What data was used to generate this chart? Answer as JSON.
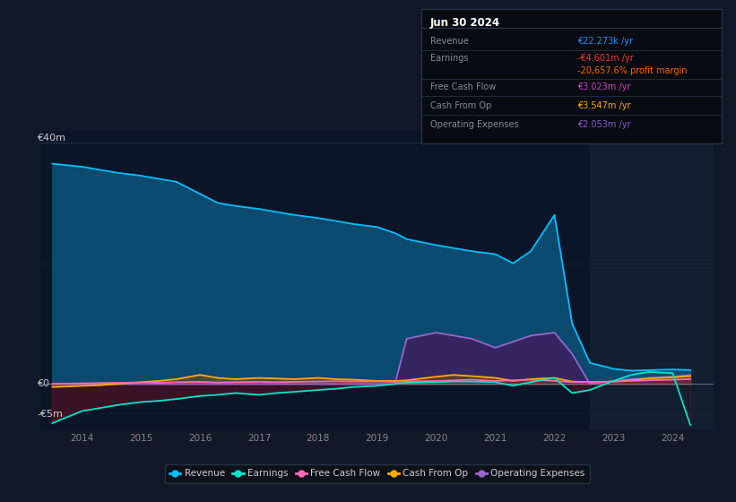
{
  "bg_color": "#111827",
  "plot_bg_color": "#0d1b2e",
  "chart_bg_dark": "#0a1628",
  "right_panel_color": "#161e2e",
  "info_box_bg": "#080c12",
  "title_box_header": "Jun 30 2024",
  "info_rows": [
    {
      "label": "Revenue",
      "value": "€22.273k /yr",
      "value_color": "#1e90ff"
    },
    {
      "label": "Earnings",
      "value": "-€4.601m /yr",
      "value_color": "#ff3333"
    },
    {
      "label": "",
      "value": "-20,657.6% profit margin",
      "value_color": "#ff6600"
    },
    {
      "label": "Free Cash Flow",
      "value": "€3.023m /yr",
      "value_color": "#cc44bb"
    },
    {
      "label": "Cash From Op",
      "value": "€3.547m /yr",
      "value_color": "#ffaa00"
    },
    {
      "label": "Operating Expenses",
      "value": "€2.053m /yr",
      "value_color": "#8855cc"
    }
  ],
  "ylabel_top": "€40m",
  "ylabel_zero": "€0",
  "ylabel_neg": "-€5m",
  "legend_items": [
    {
      "label": "Revenue",
      "color": "#00bfff"
    },
    {
      "label": "Earnings",
      "color": "#00e5cc"
    },
    {
      "label": "Free Cash Flow",
      "color": "#ff69b4"
    },
    {
      "label": "Cash From Op",
      "color": "#ffaa00"
    },
    {
      "label": "Operating Expenses",
      "color": "#9966cc"
    }
  ],
  "xmin": 2013.3,
  "xmax": 2024.7,
  "ymin": -7.5,
  "ymax": 42.0,
  "xticks": [
    2014,
    2015,
    2016,
    2017,
    2018,
    2019,
    2020,
    2021,
    2022,
    2023,
    2024
  ],
  "right_shade_start": 2022.6,
  "years": [
    2013.5,
    2014.0,
    2014.3,
    2014.6,
    2015.0,
    2015.3,
    2015.6,
    2016.0,
    2016.3,
    2016.6,
    2017.0,
    2017.3,
    2017.6,
    2018.0,
    2018.3,
    2018.6,
    2019.0,
    2019.3,
    2019.5,
    2020.0,
    2020.3,
    2020.6,
    2021.0,
    2021.3,
    2021.6,
    2022.0,
    2022.3,
    2022.6,
    2023.0,
    2023.3,
    2023.6,
    2024.0,
    2024.3
  ],
  "revenue": [
    36.5,
    36.0,
    35.5,
    35.0,
    34.5,
    34.0,
    33.5,
    31.5,
    30.0,
    29.5,
    29.0,
    28.5,
    28.0,
    27.5,
    27.0,
    26.5,
    26.0,
    25.0,
    24.0,
    23.0,
    22.5,
    22.0,
    21.5,
    20.0,
    22.0,
    28.0,
    10.0,
    3.5,
    2.5,
    2.2,
    2.3,
    2.4,
    2.3
  ],
  "earnings": [
    -6.5,
    -4.5,
    -4.0,
    -3.5,
    -3.0,
    -2.8,
    -2.5,
    -2.0,
    -1.8,
    -1.5,
    -1.8,
    -1.5,
    -1.3,
    -1.0,
    -0.8,
    -0.5,
    -0.3,
    0.0,
    0.2,
    0.3,
    0.4,
    0.4,
    0.3,
    -0.3,
    0.3,
    1.0,
    -1.5,
    -1.0,
    0.5,
    1.5,
    2.0,
    1.8,
    -6.8
  ],
  "free_cash_flow": [
    0.0,
    0.1,
    0.15,
    0.2,
    0.25,
    0.2,
    0.3,
    0.35,
    0.25,
    0.3,
    0.35,
    0.3,
    0.35,
    0.4,
    0.45,
    0.4,
    0.4,
    0.35,
    0.4,
    0.5,
    0.6,
    0.7,
    0.5,
    0.6,
    0.7,
    0.5,
    0.3,
    0.3,
    0.4,
    0.5,
    0.6,
    0.7,
    0.8
  ],
  "cash_from_op": [
    -0.5,
    -0.3,
    -0.2,
    0.0,
    0.3,
    0.5,
    0.8,
    1.5,
    1.0,
    0.8,
    1.0,
    0.9,
    0.8,
    1.0,
    0.8,
    0.7,
    0.5,
    0.5,
    0.6,
    1.2,
    1.5,
    1.3,
    1.0,
    0.5,
    0.8,
    1.0,
    0.4,
    0.3,
    0.4,
    0.6,
    0.9,
    1.1,
    1.3
  ],
  "op_expenses": [
    0.0,
    0.0,
    0.0,
    0.0,
    0.0,
    0.0,
    0.0,
    0.0,
    0.0,
    0.0,
    0.0,
    0.0,
    0.0,
    0.0,
    0.0,
    0.0,
    0.0,
    0.0,
    7.5,
    8.5,
    8.0,
    7.5,
    6.0,
    7.0,
    8.0,
    8.5,
    5.0,
    0.0,
    0.5,
    0.8,
    1.0,
    1.2,
    1.5
  ]
}
